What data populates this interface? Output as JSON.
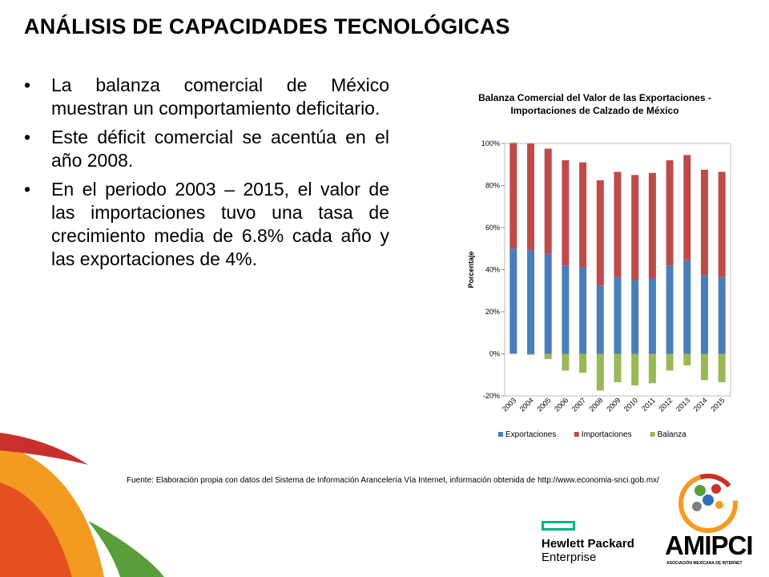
{
  "slide": {
    "title": "ANÁLISIS DE CAPACIDADES TECNOLÓGICAS",
    "bullet_marker": "•",
    "bullets": [
      "La balanza comercial de México muestran un comportamiento deficitario.",
      "Este déficit comercial se acentúa en el año 2008.",
      "En el periodo 2003 – 2015, el valor de las importaciones tuvo una tasa de crecimiento media de 6.8% cada año y las exportaciones de 4%."
    ],
    "source": "Fuente: Elaboración propia con datos del Sistema de Información Arancelería Vía Internet, información obtenida de http://www.economia-snci.gob.mx/"
  },
  "chart_data": {
    "type": "bar",
    "title": "Balanza Comercial del Valor de las Exportaciones - Importaciones de Calzado de México",
    "ylabel": "Porcentaje",
    "xlabel": "",
    "ylim": [
      -20,
      100
    ],
    "yticks": [
      "-20%",
      "0%",
      "20%",
      "40%",
      "60%",
      "80%",
      "100%"
    ],
    "categories": [
      "2003",
      "2004",
      "2005",
      "2006",
      "2007",
      "2008",
      "2009",
      "2010",
      "2011",
      "2012",
      "2013",
      "2014",
      "2015"
    ],
    "legend_position": "bottom",
    "series": [
      {
        "name": "Exportaciones",
        "color": "#4a7ebb",
        "values": [
          50,
          49.5,
          47.5,
          42,
          41,
          32.5,
          36.5,
          35,
          36,
          42,
          44.5,
          37.5,
          36.5
        ]
      },
      {
        "name": "Importaciones",
        "color": "#be4b48",
        "values": [
          50,
          50.5,
          50,
          50,
          50,
          50,
          50,
          50,
          50,
          50,
          50,
          50,
          50
        ]
      },
      {
        "name": "Balanza",
        "color": "#98b954",
        "values": [
          0.5,
          -0.5,
          -2.5,
          -8,
          -9,
          -17.5,
          -13.5,
          -15,
          -14,
          -8,
          -5.5,
          -12.5,
          -13.5
        ]
      }
    ]
  },
  "logos": {
    "hpe": {
      "line1": "Hewlett Packard",
      "line2": "Enterprise",
      "accent": "#00b388"
    },
    "amipci": {
      "name": "AMIPCI",
      "subtitle": "ASOCIACIÓN MEXICANA DE INTERNET"
    }
  }
}
